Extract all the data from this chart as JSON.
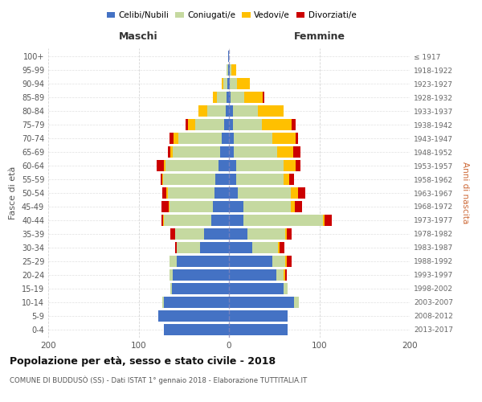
{
  "age_groups": [
    "0-4",
    "5-9",
    "10-14",
    "15-19",
    "20-24",
    "25-29",
    "30-34",
    "35-39",
    "40-44",
    "45-49",
    "50-54",
    "55-59",
    "60-64",
    "65-69",
    "70-74",
    "75-79",
    "80-84",
    "85-89",
    "90-94",
    "95-99",
    "100+"
  ],
  "birth_years": [
    "2013-2017",
    "2008-2012",
    "2003-2007",
    "1998-2002",
    "1993-1997",
    "1988-1992",
    "1983-1987",
    "1978-1982",
    "1973-1977",
    "1968-1972",
    "1963-1967",
    "1958-1962",
    "1953-1957",
    "1948-1952",
    "1943-1947",
    "1938-1942",
    "1933-1937",
    "1928-1932",
    "1923-1927",
    "1918-1922",
    "≤ 1917"
  ],
  "males_celibi": [
    72,
    78,
    72,
    63,
    62,
    58,
    32,
    28,
    20,
    18,
    16,
    15,
    12,
    10,
    8,
    5,
    4,
    3,
    2,
    1,
    1
  ],
  "males_coniugati": [
    0,
    0,
    2,
    2,
    4,
    8,
    26,
    32,
    52,
    48,
    52,
    58,
    58,
    52,
    48,
    32,
    20,
    10,
    4,
    2,
    0
  ],
  "males_vedovi": [
    0,
    0,
    0,
    0,
    0,
    0,
    0,
    0,
    1,
    1,
    1,
    1,
    2,
    3,
    5,
    8,
    10,
    5,
    2,
    0,
    0
  ],
  "males_divorziati": [
    0,
    0,
    0,
    0,
    0,
    0,
    2,
    5,
    2,
    8,
    5,
    2,
    8,
    3,
    5,
    3,
    0,
    0,
    0,
    0,
    0
  ],
  "females_nubili": [
    65,
    65,
    72,
    60,
    52,
    48,
    26,
    20,
    16,
    16,
    10,
    8,
    8,
    5,
    5,
    4,
    4,
    2,
    1,
    1,
    0
  ],
  "females_coniugate": [
    0,
    0,
    5,
    5,
    8,
    14,
    28,
    42,
    88,
    52,
    58,
    52,
    52,
    48,
    43,
    32,
    28,
    15,
    8,
    2,
    0
  ],
  "females_vedove": [
    0,
    0,
    0,
    0,
    2,
    2,
    2,
    2,
    2,
    5,
    8,
    7,
    14,
    18,
    26,
    33,
    28,
    20,
    14,
    5,
    0
  ],
  "females_divorziate": [
    0,
    0,
    0,
    0,
    2,
    5,
    5,
    5,
    8,
    8,
    8,
    5,
    5,
    8,
    2,
    5,
    0,
    2,
    0,
    0,
    0
  ],
  "color_celibi": "#4472c4",
  "color_coniugati": "#c5d9a0",
  "color_vedovi": "#ffc000",
  "color_divorziati": "#cc0000",
  "title": "Popolazione per età, sesso e stato civile - 2018",
  "subtitle": "COMUNE DI BUDDUSÒ (SS) - Dati ISTAT 1° gennaio 2018 - Elaborazione TUTTITALIA.IT",
  "ylabel_left": "Fasce di età",
  "ylabel_right": "Anni di nascita",
  "header_left": "Maschi",
  "header_right": "Femmine",
  "xlim": 200,
  "grid_color": "#cccccc",
  "legend_labels": [
    "Celibi/Nubili",
    "Coniugati/e",
    "Vedovi/e",
    "Divorziati/e"
  ]
}
